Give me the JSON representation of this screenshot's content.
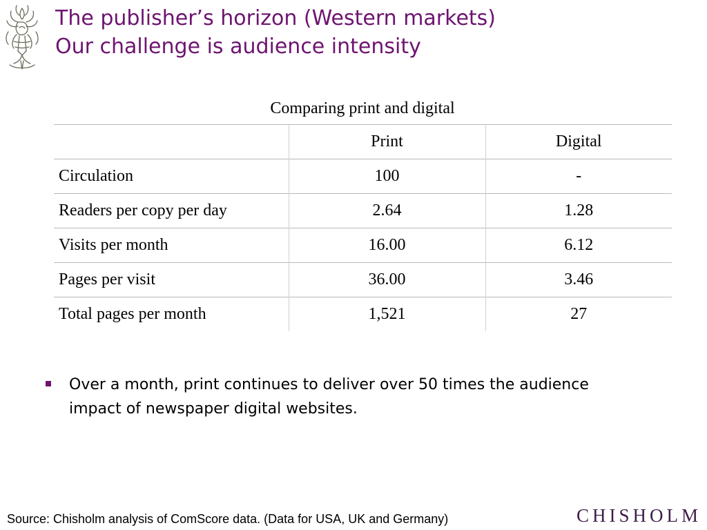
{
  "header": {
    "title_line1": "The publisher’s horizon (Western markets)",
    "title_line2": "Our challenge is audience intensity",
    "logo_icon": "heraldic-crest-icon"
  },
  "table": {
    "caption": "Comparing print and digital",
    "columns": [
      "",
      "Print",
      "Digital"
    ],
    "rows": [
      {
        "label": "Circulation",
        "print": "100",
        "digital": "-"
      },
      {
        "label": "Readers per copy per day",
        "print": "2.64",
        "digital": "1.28"
      },
      {
        "label": "Visits per month",
        "print": "16.00",
        "digital": "6.12"
      },
      {
        "label": "Pages per visit",
        "print": "36.00",
        "digital": "3.46"
      },
      {
        "label": "Total pages per month",
        "print": "1,521",
        "digital": "27"
      }
    ]
  },
  "bullets": [
    {
      "text": "Over a month, print continues to deliver over 50 times the audience impact of newspaper digital websites."
    }
  ],
  "footer": {
    "source": "Source: Chisholm analysis of ComScore data. (Data for USA, UK and Germany)",
    "brand": "CHISHOLM"
  },
  "colors": {
    "title": "#6e1470",
    "bullet": "#6e1470",
    "brand": "#3f1d4a",
    "rule": "#b8b8b8"
  }
}
